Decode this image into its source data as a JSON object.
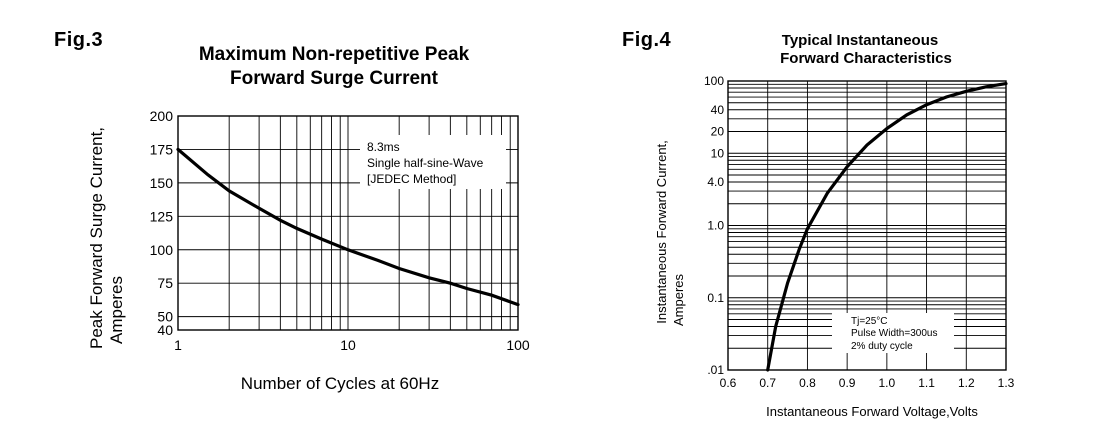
{
  "figures": [
    {
      "label": "Fig.3",
      "title_lines": [
        "Maximum Non-repetitive Peak",
        "Forward Surge Current"
      ],
      "xlabel": "Number of Cycles at 60Hz",
      "ylabel_lines": [
        "Peak Forward Surge Current,",
        "Amperes"
      ],
      "annotation_lines": [
        "8.3ms",
        "Single half-sine-Wave",
        "[JEDEC Method]"
      ]
    },
    {
      "label": "Fig.4",
      "title_lines": [
        "Typical Instantaneous",
        "Forward Characteristics"
      ],
      "xlabel": "Instantaneous Forward  Voltage,Volts",
      "ylabel_lines": [
        "Instantaneous Forward Current,",
        "Amperes"
      ],
      "annotation_lines": [
        "Tj=25°C",
        "Pulse Width=300us",
        "2% duty cycle"
      ]
    }
  ],
  "chart_data": [
    {
      "type": "line",
      "title": "Maximum Non-repetitive Peak Forward Surge Current",
      "xlabel": "Number of Cycles at 60Hz",
      "ylabel": "Peak Forward Surge Current, Amperes",
      "x_scale": "log",
      "xlim": [
        1,
        100
      ],
      "ylim": [
        40,
        200
      ],
      "x_ticks": [
        1,
        10,
        100
      ],
      "x_tick_labels": [
        "1",
        "10",
        "100"
      ],
      "y_ticks": [
        40,
        50,
        75,
        100,
        125,
        150,
        175,
        200
      ],
      "y_tick_labels": [
        "40",
        "50",
        "75",
        "100",
        "125",
        "150",
        "175",
        "200"
      ],
      "grid": true,
      "x": [
        1,
        1.5,
        2,
        3,
        4,
        5,
        7,
        10,
        15,
        20,
        30,
        40,
        50,
        70,
        100
      ],
      "y": [
        175,
        156,
        144,
        131,
        122,
        116,
        108,
        100,
        92,
        86,
        79,
        75,
        71,
        66,
        59
      ]
    },
    {
      "type": "line",
      "title": "Typical Instantaneous Forward Characteristics",
      "xlabel": "Instantaneous Forward  Voltage,Volts",
      "ylabel": "Instantaneous Forward Current, Amperes",
      "y_scale": "log",
      "xlim": [
        0.6,
        1.3
      ],
      "ylim": [
        0.01,
        100
      ],
      "x_ticks": [
        0.6,
        0.7,
        0.8,
        0.9,
        1.0,
        1.1,
        1.2,
        1.3
      ],
      "x_tick_labels": [
        "0.6",
        "0.7",
        "0.8",
        "0.9",
        "1.0",
        "1.1",
        "1.2",
        "1.3"
      ],
      "y_ticks": [
        0.01,
        0.1,
        1.0,
        4.0,
        10,
        20,
        40,
        100
      ],
      "y_tick_labels": [
        ".01",
        "0.1",
        "1.0",
        "4.0",
        "10",
        "20",
        "40",
        "100"
      ],
      "grid": true,
      "x": [
        0.7,
        0.72,
        0.75,
        0.78,
        0.8,
        0.85,
        0.9,
        0.95,
        1.0,
        1.05,
        1.1,
        1.15,
        1.2,
        1.25,
        1.3
      ],
      "y": [
        0.01,
        0.04,
        0.16,
        0.48,
        0.9,
        2.8,
        6.5,
        13,
        22,
        34,
        47,
        60,
        72,
        83,
        92
      ]
    }
  ]
}
